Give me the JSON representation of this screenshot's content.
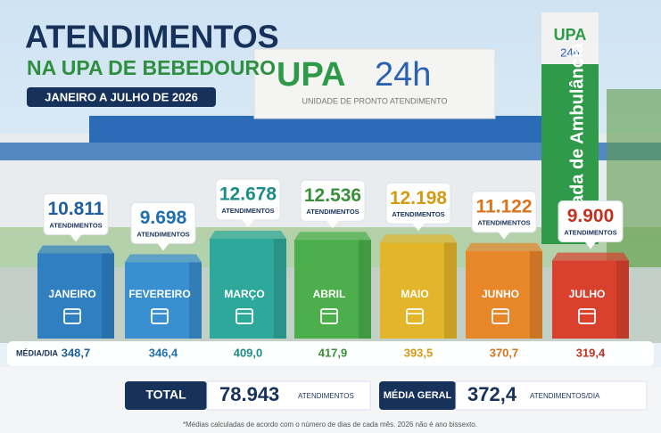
{
  "chart_data": {
    "type": "bar",
    "title": "ATENDIMENTOS",
    "subtitle": "NA UPA DE BEBEDOURO",
    "period": "JANEIRO A JULHO DE 2026",
    "categories": [
      "JANEIRO",
      "FEVEREIRO",
      "MARÇO",
      "ABRIL",
      "MAIO",
      "JUNHO",
      "JULHO"
    ],
    "values": [
      10811,
      9698,
      12678,
      12536,
      12198,
      11122,
      9900
    ],
    "value_labels": [
      "10.811",
      "9.698",
      "12.678",
      "12.536",
      "12.198",
      "11.122",
      "9.900"
    ],
    "value_unit": "ATENDIMENTOS",
    "colors": [
      "#2f7fc1",
      "#3a8fd0",
      "#2ea89a",
      "#4caf4c",
      "#e2b52a",
      "#e8862a",
      "#d9412e"
    ],
    "label_colors": [
      "#1f5f9e",
      "#1f6fb0",
      "#1d8c86",
      "#3a8f3a",
      "#d39a14",
      "#d9731c",
      "#c0321f"
    ],
    "daily_average": {
      "label": "MÉDIA/DIA",
      "values": [
        "348,7",
        "346,4",
        "409,0",
        "417,9",
        "393,5",
        "370,7",
        "319,4"
      ]
    },
    "total": {
      "label": "TOTAL",
      "value": "78.943",
      "unit": "ATENDIMENTOS"
    },
    "overall_average": {
      "label": "MÉDIA GERAL",
      "value": "372,4",
      "unit": "ATENDIMENTOS/DIA"
    },
    "footnote": "*Médias calculadas de acordo com o número de dias de cada mês. 2026 não é ano bissexto.",
    "background": {
      "logo_upa": "UPA",
      "logo_24h": "24h",
      "logo_caption": "UNIDADE DE PRONTO ATENDIMENTO",
      "sign_text": "Entrada de Ambulância"
    }
  }
}
